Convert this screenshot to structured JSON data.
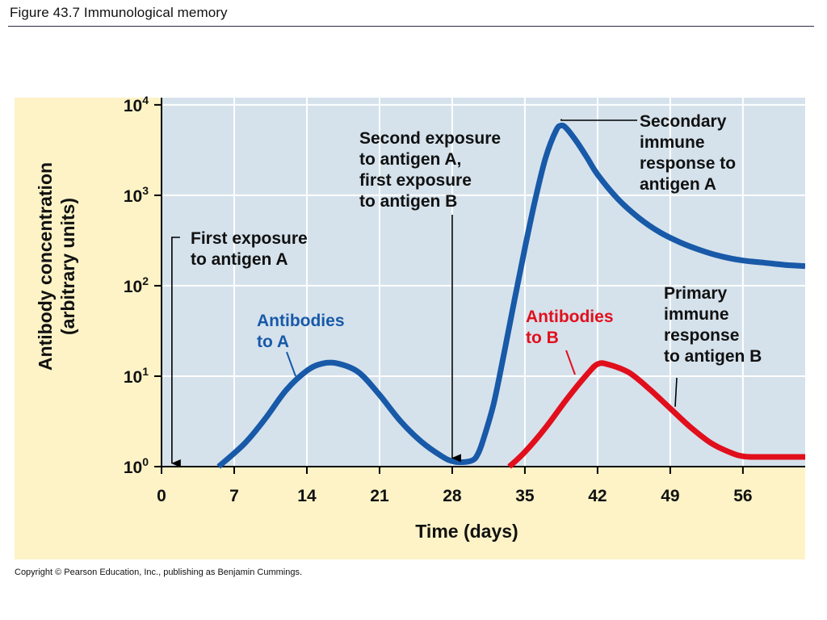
{
  "figure_title": "Figure 43.7  Immunological memory",
  "copyright": "Copyright © Pearson Education, Inc., publishing as Benjamin Cummings.",
  "colors": {
    "panel_background": "#fdf3c6",
    "plot_background": "#d5e2ec",
    "gridline": "#ffffff",
    "antibodies_a": "#1859a8",
    "antibodies_b": "#e10f1c",
    "text": "#111111"
  },
  "chart_data": {
    "type": "line",
    "xlabel": "Time (days)",
    "ylabel_lines": [
      "Antibody concentration",
      "(arbitrary units)"
    ],
    "xlim": [
      0,
      62
    ],
    "ylim": [
      1,
      12000
    ],
    "yscale": "log",
    "grid": true,
    "x_ticks": [
      0,
      7,
      14,
      21,
      28,
      35,
      42,
      49,
      56
    ],
    "x_tick_labels": [
      "0",
      "7",
      "14",
      "21",
      "28",
      "35",
      "42",
      "49",
      "56"
    ],
    "y_ticks": [
      1,
      10,
      100,
      1000,
      10000
    ],
    "y_tick_labels": [
      {
        "base": "10",
        "exp": "0"
      },
      {
        "base": "10",
        "exp": "1"
      },
      {
        "base": "10",
        "exp": "2"
      },
      {
        "base": "10",
        "exp": "3"
      },
      {
        "base": "10",
        "exp": "4"
      }
    ],
    "series": [
      {
        "name": "Antibodies to A",
        "label_lines": [
          "Antibodies",
          "to A"
        ],
        "color": "#1859a8",
        "x": [
          5.5,
          8,
          10,
          12,
          14,
          15.5,
          17,
          19,
          21,
          23,
          25,
          27,
          28,
          29,
          30,
          30.5,
          31,
          32,
          33,
          34,
          35,
          36,
          37,
          38,
          38.5,
          39,
          40,
          41,
          42,
          44,
          46,
          48,
          50,
          52,
          54,
          56,
          58,
          60,
          62
        ],
        "y": [
          1,
          1.8,
          3.4,
          7,
          11.5,
          13.8,
          13.8,
          11,
          6.2,
          3.2,
          1.9,
          1.3,
          1.15,
          1.12,
          1.18,
          1.4,
          2,
          5,
          18,
          70,
          260,
          900,
          2600,
          5200,
          5900,
          5500,
          3900,
          2600,
          1700,
          900,
          560,
          390,
          300,
          245,
          210,
          190,
          180,
          170,
          165
        ]
      },
      {
        "name": "Antibodies to B",
        "label_lines": [
          "Antibodies",
          "to B"
        ],
        "color": "#e10f1c",
        "x": [
          33.5,
          35,
          37,
          39,
          41,
          42,
          43,
          45,
          47,
          49,
          51,
          53,
          55,
          56,
          57,
          58,
          60,
          62
        ],
        "y": [
          1,
          1.45,
          2.7,
          5.5,
          10.5,
          13.6,
          13.5,
          11,
          7.2,
          4.4,
          2.7,
          1.8,
          1.4,
          1.3,
          1.28,
          1.28,
          1.28,
          1.28
        ]
      }
    ],
    "annotations": [
      {
        "id": "first-exposure-a",
        "lines": [
          "First exposure",
          "to antigen A"
        ],
        "x": 1,
        "y": 1
      },
      {
        "id": "second-exposure-a-first-b",
        "lines": [
          "Second exposure",
          "to antigen A,",
          "first exposure",
          "to antigen B"
        ],
        "x": 28,
        "y": 1.1
      },
      {
        "id": "secondary-response-a",
        "lines": [
          "Secondary",
          "immune",
          "response to",
          "antigen A"
        ],
        "x": 38.5,
        "y": 5900
      },
      {
        "id": "primary-response-b",
        "lines": [
          "Primary",
          "immune",
          "response",
          "to antigen B"
        ],
        "x": 49.5,
        "y": 3.9
      }
    ]
  }
}
